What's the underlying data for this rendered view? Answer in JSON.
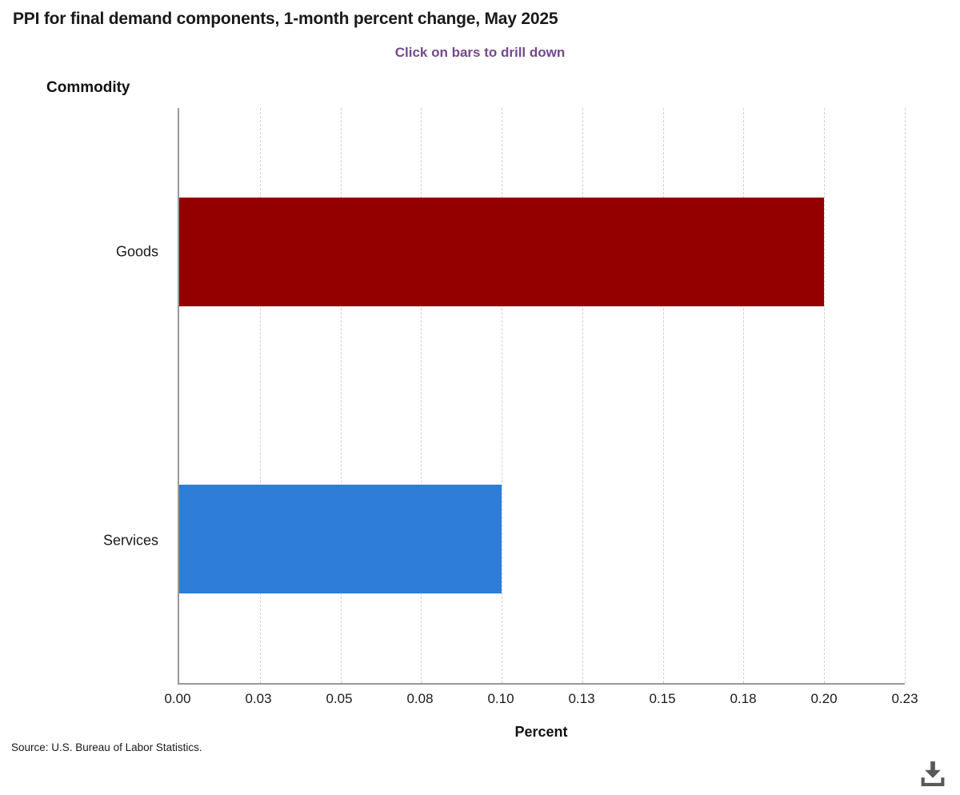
{
  "header": {
    "title": "PPI for final demand components, 1-month percent change, May 2025",
    "subtitle": "Click on bars to drill down"
  },
  "chart_data": {
    "type": "bar",
    "orientation": "horizontal",
    "title": "PPI for final demand components, 1-month percent change, May 2025",
    "subtitle": "Click on bars to drill down",
    "xlabel": "Percent",
    "ylabel": "Commodity",
    "categories": [
      "Goods",
      "Services"
    ],
    "values": [
      0.2,
      0.1
    ],
    "bar_colors": [
      "#940000",
      "#2E7DD7"
    ],
    "xlim": [
      0,
      0.225
    ],
    "x_ticks": [
      0,
      0.025,
      0.05,
      0.075,
      0.1,
      0.125,
      0.15,
      0.175,
      0.2,
      0.225
    ],
    "x_tick_labels": [
      "0.00",
      "0.03",
      "0.05",
      "0.08",
      "0.10",
      "0.13",
      "0.15",
      "0.18",
      "0.20",
      "0.23"
    ],
    "grid": "vertical-dashed",
    "legend": "none"
  },
  "footer": {
    "source": "Source: U.S. Bureau of Labor Statistics."
  },
  "icons": {
    "download": "download-icon"
  },
  "colors": {
    "subtitle_purple": "#73498E",
    "goods_red": "#940000",
    "services_blue": "#2E7DD7",
    "axis_gray": "#999999",
    "gridline_gray": "#d0d0d0",
    "download_gray": "#58595B"
  }
}
